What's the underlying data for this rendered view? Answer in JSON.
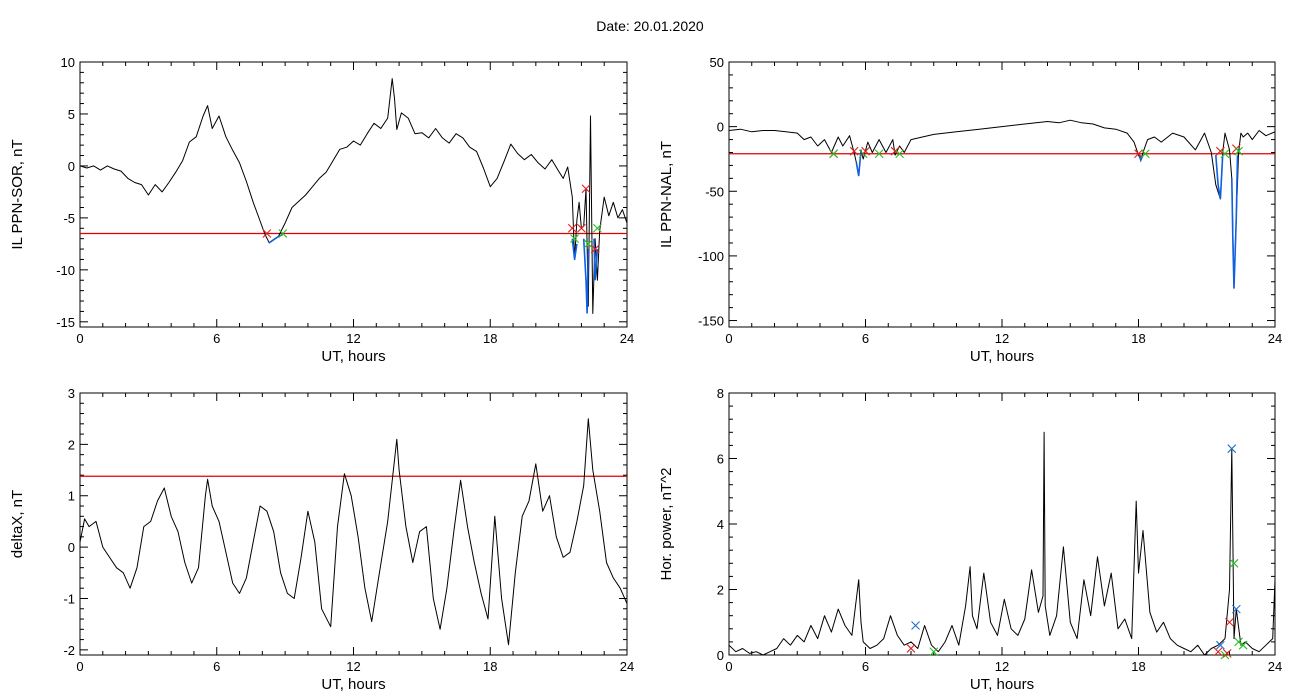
{
  "page": {
    "title": "Date:  20.01.2020"
  },
  "colors": {
    "trace": "#000000",
    "threshold": "#e00000",
    "excursion": "#1060e0",
    "marker_red": "#e02020",
    "marker_green": "#20c020",
    "marker_blue": "#2070d0"
  },
  "chart_data": [
    {
      "type": "line",
      "title": "",
      "xlabel": "UT, hours",
      "ylabel": "IL PPN-SOR, nT",
      "xlim": [
        0,
        24
      ],
      "ylim": [
        -15.5,
        10
      ],
      "xticks": [
        0,
        6,
        12,
        18,
        24
      ],
      "yticks": [
        10,
        5,
        0,
        -5,
        -10,
        -15
      ],
      "threshold": -6.5,
      "series": [
        {
          "x": [
            0,
            0.3,
            0.6,
            0.9,
            1.2,
            1.5,
            1.8,
            2.1,
            2.4,
            2.7,
            3.0,
            3.3,
            3.6,
            3.9,
            4.2,
            4.5,
            4.8,
            5.1,
            5.4,
            5.6,
            5.8,
            6.1,
            6.4,
            6.7,
            7.0,
            7.3,
            7.6,
            7.9,
            8.1,
            8.3,
            8.5,
            8.7,
            9.0,
            9.3,
            9.6,
            9.9,
            10.2,
            10.5,
            10.8,
            11.1,
            11.4,
            11.7,
            12.0,
            12.3,
            12.6,
            12.9,
            13.2,
            13.5,
            13.7,
            13.8,
            13.9,
            14.1,
            14.4,
            14.7,
            15.0,
            15.3,
            15.6,
            15.9,
            16.2,
            16.5,
            16.8,
            17.1,
            17.4,
            17.7,
            18.0,
            18.3,
            18.6,
            18.9,
            19.2,
            19.5,
            19.8,
            20.1,
            20.4,
            20.7,
            21.0,
            21.2,
            21.4,
            21.6,
            21.7,
            21.8,
            21.9,
            22.0,
            22.1,
            22.2,
            22.3,
            22.4,
            22.5,
            22.6,
            22.7,
            22.8,
            23.0,
            23.2,
            23.4,
            23.6,
            23.8,
            24.0
          ],
          "y": [
            0,
            -0.2,
            0,
            -0.4,
            0,
            -0.3,
            -0.5,
            -1.2,
            -1.6,
            -1.8,
            -2.8,
            -1.8,
            -2.5,
            -1.6,
            -0.6,
            0.5,
            2.3,
            2.8,
            4.8,
            5.8,
            3.6,
            4.8,
            2.8,
            1.5,
            0.3,
            -1.5,
            -3.5,
            -5.3,
            -6.5,
            -7.4,
            -7.1,
            -6.8,
            -5.5,
            -4.0,
            -3.4,
            -2.8,
            -2.0,
            -1.2,
            -0.6,
            0.5,
            1.6,
            1.8,
            2.4,
            2.0,
            3.1,
            4.1,
            3.6,
            4.6,
            8.4,
            6.5,
            3.5,
            5.1,
            4.6,
            3.1,
            3.2,
            2.7,
            3.6,
            2.7,
            2.2,
            3.1,
            2.7,
            1.8,
            1.4,
            -0.2,
            -2.0,
            -1.2,
            0.4,
            2.1,
            1.2,
            0.6,
            1.1,
            0.3,
            -0.3,
            0.6,
            -0.5,
            -1.2,
            -0.1,
            -3.0,
            -9.0,
            -5.2,
            -3.5,
            -6.0,
            -5.8,
            -2.2,
            -13.5,
            4.8,
            -14.2,
            -7.0,
            -11.0,
            -6.2,
            -3.0,
            -4.8,
            -3.5,
            -5.0,
            -4.2,
            -5.5
          ]
        }
      ],
      "excursions": [
        {
          "x": [
            8.3,
            8.5,
            8.7,
            8.9
          ],
          "y": [
            -7.4,
            -7.1,
            -6.8,
            -6.6
          ]
        },
        {
          "x": [
            21.6,
            21.7,
            21.8
          ],
          "y": [
            -7.0,
            -9.0,
            -7.5
          ]
        },
        {
          "x": [
            22.1,
            22.2,
            22.25,
            22.3
          ],
          "y": [
            -7.0,
            -11.0,
            -14.2,
            -8.0
          ]
        },
        {
          "x": [
            22.55,
            22.6,
            22.7
          ],
          "y": [
            -7.0,
            -11.0,
            -8.0
          ]
        }
      ],
      "markers": [
        {
          "x": 8.2,
          "y": -6.5,
          "color": "red"
        },
        {
          "x": 8.9,
          "y": -6.5,
          "color": "green"
        },
        {
          "x": 21.6,
          "y": -6.0,
          "color": "red"
        },
        {
          "x": 21.7,
          "y": -7.0,
          "color": "green"
        },
        {
          "x": 22.0,
          "y": -6.0,
          "color": "red"
        },
        {
          "x": 22.2,
          "y": -2.2,
          "color": "red"
        },
        {
          "x": 22.3,
          "y": -7.5,
          "color": "green"
        },
        {
          "x": 22.6,
          "y": -8.0,
          "color": "red"
        },
        {
          "x": 22.7,
          "y": -6.0,
          "color": "green"
        }
      ]
    },
    {
      "type": "line",
      "title": "",
      "xlabel": "UT, hours",
      "ylabel": "IL PPN-NAL, nT",
      "xlim": [
        0,
        24
      ],
      "ylim": [
        -155,
        50
      ],
      "xticks": [
        0,
        6,
        12,
        18,
        24
      ],
      "yticks": [
        50,
        0,
        -50,
        -100,
        -150
      ],
      "threshold": -21,
      "series": [
        {
          "x": [
            0,
            0.5,
            1.0,
            1.5,
            2.0,
            2.5,
            3.0,
            3.3,
            3.6,
            3.9,
            4.2,
            4.5,
            4.8,
            5.0,
            5.3,
            5.5,
            5.6,
            5.7,
            5.8,
            5.9,
            6.1,
            6.3,
            6.6,
            6.9,
            7.2,
            7.3,
            7.5,
            7.7,
            8.0,
            8.5,
            9.0,
            10.0,
            11.0,
            12.0,
            13.0,
            14.0,
            14.5,
            15.0,
            15.5,
            16.0,
            16.5,
            17.0,
            17.5,
            17.8,
            18.0,
            18.1,
            18.2,
            18.4,
            18.7,
            19.0,
            19.5,
            20.0,
            20.5,
            20.9,
            21.2,
            21.4,
            21.6,
            21.7,
            21.8,
            22.0,
            22.1,
            22.2,
            22.3,
            22.4,
            22.5,
            22.6,
            22.8,
            23.0,
            23.3,
            23.6,
            24.0
          ],
          "y": [
            -3,
            -2,
            -4,
            -3,
            -3,
            -4,
            -5,
            -10,
            -8,
            -15,
            -10,
            -20,
            -8,
            -15,
            -7,
            -20,
            -28,
            -38,
            -18,
            -25,
            -12,
            -20,
            -10,
            -20,
            -10,
            -22,
            -15,
            -20,
            -10,
            -8,
            -6,
            -4,
            -2,
            0,
            2,
            4,
            3,
            5,
            3,
            2,
            -1,
            -2,
            -5,
            -12,
            -22,
            -26,
            -20,
            -10,
            -8,
            -12,
            -5,
            -8,
            -18,
            -5,
            -20,
            -45,
            -56,
            -20,
            -5,
            -18,
            -40,
            -125,
            -70,
            -20,
            -5,
            -8,
            -5,
            -10,
            -3,
            -7,
            -4
          ]
        }
      ],
      "excursions": [
        {
          "x": [
            5.6,
            5.7,
            5.8
          ],
          "y": [
            -28,
            -38,
            -18
          ]
        },
        {
          "x": [
            18.05,
            18.1,
            18.2
          ],
          "y": [
            -22,
            -26,
            -22
          ]
        },
        {
          "x": [
            21.4,
            21.5,
            21.6,
            21.7
          ],
          "y": [
            -22,
            -45,
            -56,
            -22
          ]
        },
        {
          "x": [
            22.1,
            22.15,
            22.2,
            22.3,
            22.35
          ],
          "y": [
            -40,
            -90,
            -125,
            -70,
            -22
          ]
        }
      ],
      "markers": [
        {
          "x": 4.6,
          "y": -21,
          "color": "red"
        },
        {
          "x": 4.6,
          "y": -21,
          "color": "green"
        },
        {
          "x": 5.5,
          "y": -19,
          "color": "red"
        },
        {
          "x": 5.9,
          "y": -21,
          "color": "green"
        },
        {
          "x": 6.0,
          "y": -19,
          "color": "red"
        },
        {
          "x": 6.6,
          "y": -21,
          "color": "green"
        },
        {
          "x": 7.3,
          "y": -19,
          "color": "red"
        },
        {
          "x": 7.5,
          "y": -21,
          "color": "green"
        },
        {
          "x": 18.0,
          "y": -21,
          "color": "red"
        },
        {
          "x": 18.3,
          "y": -21,
          "color": "green"
        },
        {
          "x": 21.6,
          "y": -19,
          "color": "red"
        },
        {
          "x": 21.8,
          "y": -21,
          "color": "green"
        },
        {
          "x": 22.3,
          "y": -17,
          "color": "red"
        },
        {
          "x": 22.4,
          "y": -19,
          "color": "green"
        }
      ]
    },
    {
      "type": "line",
      "title": "",
      "xlabel": "UT, hours",
      "ylabel": "deltaX, nT",
      "xlim": [
        0,
        24
      ],
      "ylim": [
        -2.1,
        3
      ],
      "xticks": [
        0,
        6,
        12,
        18,
        24
      ],
      "yticks": [
        3,
        2,
        1,
        0,
        -1,
        -2
      ],
      "threshold": 1.38,
      "series": [
        {
          "x": [
            0,
            0.2,
            0.4,
            0.7,
            1.0,
            1.3,
            1.6,
            1.9,
            2.2,
            2.5,
            2.8,
            3.1,
            3.4,
            3.7,
            4.0,
            4.3,
            4.6,
            4.9,
            5.2,
            5.5,
            5.6,
            5.8,
            6.1,
            6.4,
            6.7,
            7.0,
            7.3,
            7.6,
            7.9,
            8.2,
            8.5,
            8.8,
            9.1,
            9.4,
            9.7,
            10.0,
            10.3,
            10.6,
            11.0,
            11.3,
            11.6,
            11.9,
            12.2,
            12.5,
            12.8,
            13.1,
            13.5,
            13.9,
            14.0,
            14.3,
            14.6,
            14.9,
            15.2,
            15.5,
            15.8,
            16.1,
            16.4,
            16.7,
            17.0,
            17.3,
            17.6,
            17.9,
            18.2,
            18.5,
            18.8,
            19.1,
            19.4,
            19.7,
            20.0,
            20.3,
            20.6,
            20.9,
            21.2,
            21.5,
            21.8,
            22.1,
            22.3,
            22.5,
            22.8,
            23.1,
            23.4,
            23.7,
            24.0
          ],
          "y": [
            0.1,
            0.55,
            0.4,
            0.5,
            0.0,
            -0.2,
            -0.4,
            -0.5,
            -0.8,
            -0.4,
            0.4,
            0.5,
            0.9,
            1.15,
            0.6,
            0.3,
            -0.3,
            -0.7,
            -0.4,
            1.0,
            1.32,
            0.8,
            0.5,
            -0.1,
            -0.7,
            -0.9,
            -0.6,
            0.1,
            0.8,
            0.7,
            0.3,
            -0.5,
            -0.9,
            -1.0,
            -0.2,
            0.7,
            0.1,
            -1.2,
            -1.55,
            0.4,
            1.43,
            1.0,
            0.2,
            -0.8,
            -1.45,
            -0.6,
            0.5,
            2.1,
            1.5,
            0.4,
            -0.3,
            0.3,
            0.4,
            -1.0,
            -1.6,
            -0.8,
            0.3,
            1.3,
            0.4,
            -0.3,
            -0.9,
            -1.4,
            0.6,
            -1.0,
            -1.9,
            -0.5,
            0.6,
            0.9,
            1.62,
            0.7,
            1.0,
            0.2,
            -0.2,
            -0.1,
            0.5,
            1.2,
            2.5,
            1.5,
            0.7,
            -0.3,
            -0.6,
            -0.8,
            -1.1
          ]
        }
      ],
      "excursions": [],
      "markers": []
    },
    {
      "type": "line",
      "title": "",
      "xlabel": "UT, hours",
      "ylabel": "Hor. power, nT^2",
      "xlim": [
        0,
        24
      ],
      "ylim": [
        0,
        8
      ],
      "xticks": [
        0,
        6,
        12,
        18,
        24
      ],
      "yticks": [
        8,
        6,
        4,
        2,
        0
      ],
      "threshold": null,
      "series": [
        {
          "x": [
            0,
            0.3,
            0.6,
            0.9,
            1.2,
            1.5,
            1.8,
            2.1,
            2.4,
            2.7,
            3.0,
            3.3,
            3.6,
            3.9,
            4.2,
            4.5,
            4.8,
            5.1,
            5.4,
            5.7,
            5.8,
            5.9,
            6.2,
            6.5,
            6.8,
            7.1,
            7.4,
            7.7,
            8.0,
            8.3,
            8.6,
            8.9,
            9.2,
            9.5,
            9.8,
            10.1,
            10.4,
            10.6,
            10.7,
            10.9,
            11.2,
            11.5,
            11.8,
            12.1,
            12.4,
            12.7,
            13.0,
            13.3,
            13.6,
            13.8,
            13.85,
            13.9,
            14.1,
            14.4,
            14.7,
            15.0,
            15.3,
            15.6,
            15.9,
            16.2,
            16.5,
            16.8,
            17.1,
            17.4,
            17.7,
            17.9,
            18.0,
            18.2,
            18.5,
            18.8,
            19.1,
            19.4,
            19.7,
            20.0,
            20.3,
            20.6,
            20.9,
            21.2,
            21.5,
            21.8,
            22.0,
            22.1,
            22.2,
            22.3,
            22.5,
            22.7,
            23.0,
            23.3,
            23.6,
            23.9,
            24.0
          ],
          "y": [
            0.3,
            0.1,
            0.2,
            0.05,
            0.1,
            0.0,
            0.1,
            0.2,
            0.5,
            0.3,
            0.6,
            0.4,
            0.9,
            0.5,
            1.2,
            0.7,
            1.4,
            0.9,
            0.6,
            2.3,
            1.0,
            0.4,
            0.2,
            0.3,
            0.5,
            1.2,
            0.6,
            0.3,
            0.4,
            0.2,
            0.9,
            0.3,
            0.1,
            0.4,
            0.9,
            0.3,
            1.5,
            2.7,
            1.2,
            0.8,
            2.5,
            1.0,
            0.6,
            1.7,
            0.8,
            0.6,
            1.1,
            2.6,
            1.3,
            1.8,
            6.8,
            1.5,
            0.6,
            1.2,
            3.3,
            1.0,
            0.5,
            2.3,
            1.2,
            3.0,
            1.5,
            2.5,
            0.8,
            1.1,
            0.5,
            4.7,
            2.5,
            3.8,
            1.3,
            0.7,
            1.0,
            0.5,
            0.3,
            0.2,
            0.1,
            0.3,
            0.0,
            0.2,
            0.3,
            0.5,
            2.0,
            6.3,
            0.5,
            1.4,
            0.3,
            0.4,
            0.2,
            0.1,
            0.3,
            0.5,
            2.3
          ]
        }
      ],
      "excursions": [],
      "markers": [
        {
          "x": 8.2,
          "y": 0.9,
          "color": "blue"
        },
        {
          "x": 8.0,
          "y": 0.2,
          "color": "red"
        },
        {
          "x": 9.0,
          "y": 0.1,
          "color": "green"
        },
        {
          "x": 21.5,
          "y": 0.1,
          "color": "red"
        },
        {
          "x": 21.6,
          "y": 0.3,
          "color": "blue"
        },
        {
          "x": 21.8,
          "y": 0.0,
          "color": "green"
        },
        {
          "x": 21.9,
          "y": 0.05,
          "color": "red"
        },
        {
          "x": 22.0,
          "y": 1.0,
          "color": "red"
        },
        {
          "x": 22.1,
          "y": 6.3,
          "color": "blue"
        },
        {
          "x": 22.2,
          "y": 2.8,
          "color": "green"
        },
        {
          "x": 22.3,
          "y": 1.4,
          "color": "blue"
        },
        {
          "x": 22.4,
          "y": 0.4,
          "color": "green"
        },
        {
          "x": 22.6,
          "y": 0.3,
          "color": "green"
        }
      ]
    }
  ]
}
